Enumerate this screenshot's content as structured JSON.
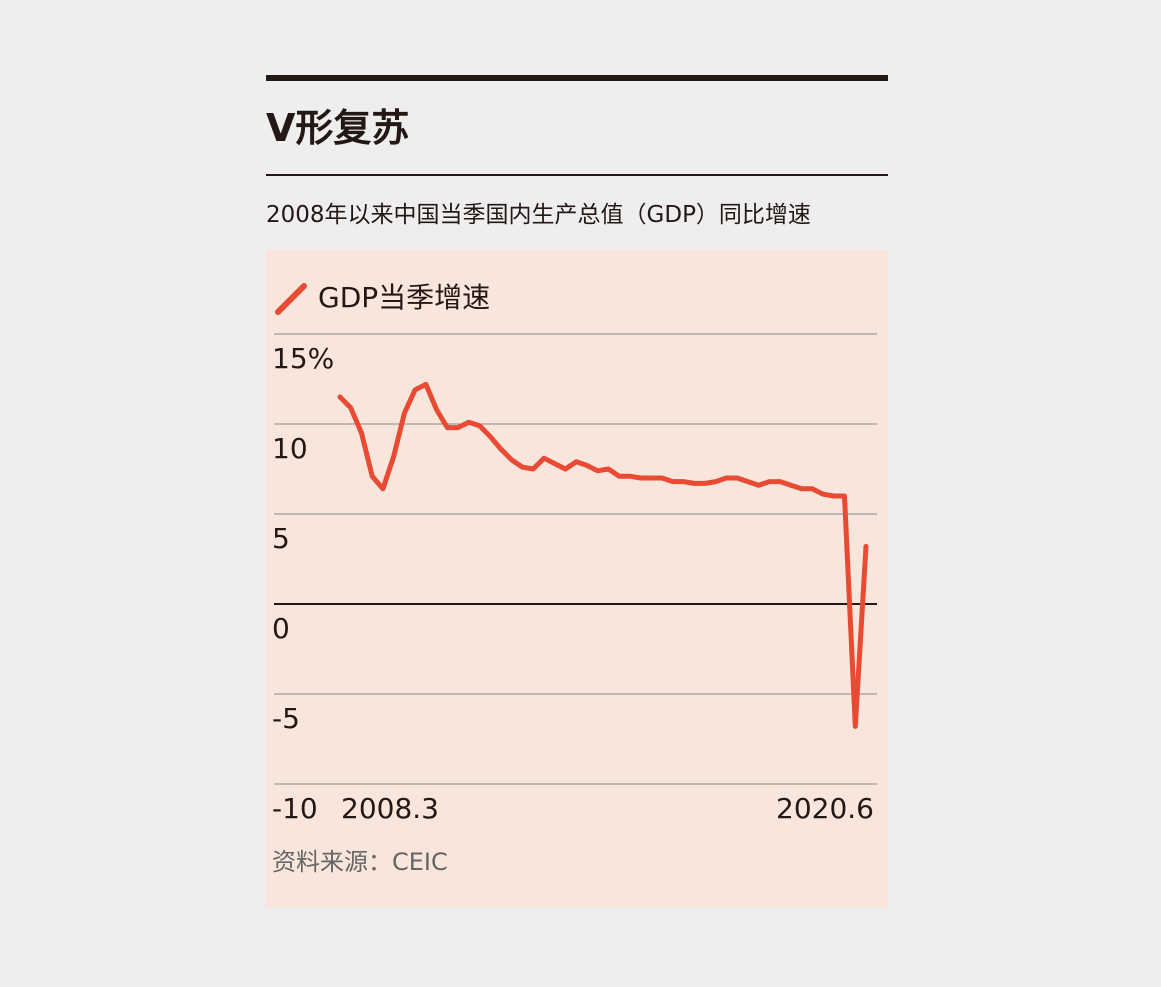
{
  "header": {
    "title": "V形复苏",
    "subtitle": "2008年以来中国当季国内生产总值（GDP）同比增速"
  },
  "source": "资料来源：CEIC",
  "colors": {
    "background": "#eeeeee",
    "panel": "#f8e6dc",
    "series": "#e84a33",
    "text": "#231815",
    "grid": "#8a8a8a"
  },
  "chart_data": {
    "type": "line",
    "legend_position": "top-left",
    "ylim": [
      -10,
      15
    ],
    "y_ticks": [
      15,
      10,
      5,
      0,
      -5,
      -10
    ],
    "y_tick_labels": [
      "15%",
      "10",
      "5",
      "0",
      "-5",
      "-10"
    ],
    "x_labels": [
      "2008.3",
      "2020.6"
    ],
    "grid": true,
    "series": [
      {
        "name": "GDP当季增速",
        "x": [
          "2008.3",
          "2008.6",
          "2008.9",
          "2008.12",
          "2009.3",
          "2009.6",
          "2009.9",
          "2009.12",
          "2010.3",
          "2010.6",
          "2010.9",
          "2010.12",
          "2011.3",
          "2011.6",
          "2011.9",
          "2011.12",
          "2012.3",
          "2012.6",
          "2012.9",
          "2012.12",
          "2013.3",
          "2013.6",
          "2013.9",
          "2013.12",
          "2014.3",
          "2014.6",
          "2014.9",
          "2014.12",
          "2015.3",
          "2015.6",
          "2015.9",
          "2015.12",
          "2016.3",
          "2016.6",
          "2016.9",
          "2016.12",
          "2017.3",
          "2017.6",
          "2017.9",
          "2017.12",
          "2018.3",
          "2018.6",
          "2018.9",
          "2018.12",
          "2019.3",
          "2019.6",
          "2019.9",
          "2019.12",
          "2020.3",
          "2020.6"
        ],
        "values": [
          11.5,
          10.9,
          9.5,
          7.1,
          6.4,
          8.2,
          10.6,
          11.9,
          12.2,
          10.8,
          9.8,
          9.8,
          10.1,
          9.9,
          9.3,
          8.6,
          8.0,
          7.6,
          7.5,
          8.1,
          7.8,
          7.5,
          7.9,
          7.7,
          7.4,
          7.5,
          7.1,
          7.1,
          7.0,
          7.0,
          7.0,
          6.8,
          6.8,
          6.7,
          6.7,
          6.8,
          7.0,
          7.0,
          6.8,
          6.6,
          6.8,
          6.8,
          6.6,
          6.4,
          6.4,
          6.1,
          6.0,
          6.0,
          -6.8,
          3.2
        ]
      }
    ]
  }
}
